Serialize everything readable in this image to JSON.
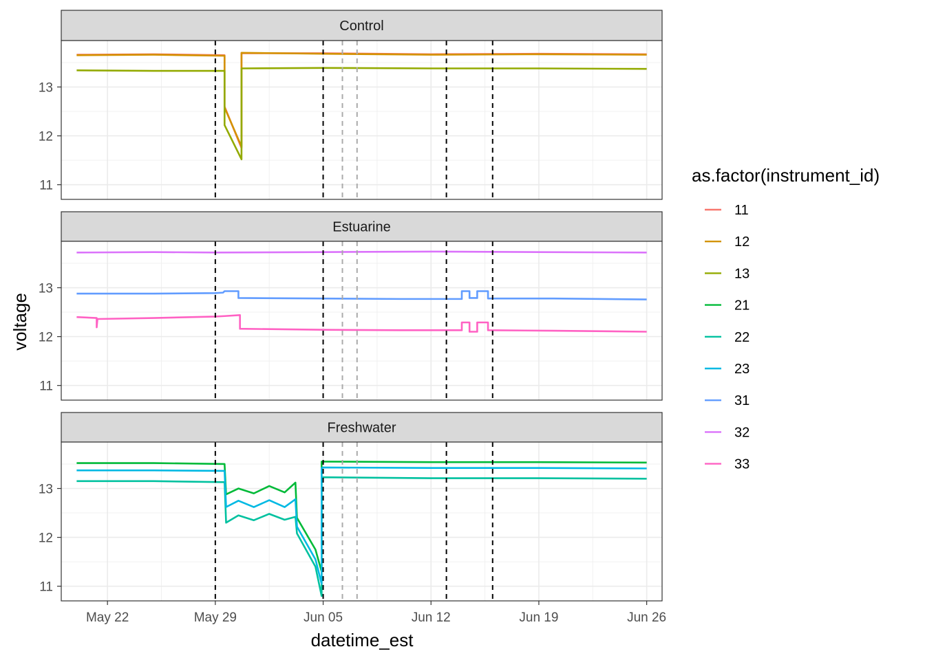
{
  "chart_data": {
    "type": "line",
    "xlabel": "datetime_est",
    "ylabel": "voltage",
    "legend_title": "as.factor(instrument_id)",
    "legend_position": "right",
    "grid": true,
    "x_range": [
      "2024-05-19",
      "2024-06-27"
    ],
    "y_range": [
      10.7,
      13.95
    ],
    "x_ticks": [
      {
        "date": "2024-05-22",
        "label": "May 22"
      },
      {
        "date": "2024-05-29",
        "label": "May 29"
      },
      {
        "date": "2024-06-05",
        "label": "Jun 05"
      },
      {
        "date": "2024-06-12",
        "label": "Jun 12"
      },
      {
        "date": "2024-06-19",
        "label": "Jun 19"
      },
      {
        "date": "2024-06-26",
        "label": "Jun 26"
      }
    ],
    "y_ticks": [
      11,
      12,
      13
    ],
    "event_lines": [
      {
        "date": "2024-05-29",
        "color": "#000000"
      },
      {
        "date": "2024-06-05",
        "color": "#000000"
      },
      {
        "date": "2024-06-06.25",
        "color": "#aaaaaa"
      },
      {
        "date": "2024-06-07.2",
        "color": "#aaaaaa"
      },
      {
        "date": "2024-06-13",
        "color": "#000000"
      },
      {
        "date": "2024-06-16",
        "color": "#000000"
      }
    ],
    "legend": [
      {
        "id": "11",
        "color": "#F8766D"
      },
      {
        "id": "12",
        "color": "#D39200"
      },
      {
        "id": "13",
        "color": "#93AA00"
      },
      {
        "id": "21",
        "color": "#00BA38"
      },
      {
        "id": "22",
        "color": "#00C19F"
      },
      {
        "id": "23",
        "color": "#00B9E3"
      },
      {
        "id": "31",
        "color": "#619CFF"
      },
      {
        "id": "32",
        "color": "#DB72FB"
      },
      {
        "id": "33",
        "color": "#FF61C3"
      }
    ],
    "panels": [
      {
        "title": "Control",
        "series": [
          {
            "id": "11",
            "color": "#F8766D",
            "points": [
              [
                "2024-05-20",
                13.66
              ],
              [
                "2024-05-25",
                13.67
              ],
              [
                "2024-05-29.6",
                13.65
              ],
              [
                "2024-05-29.6",
                12.6
              ],
              [
                "2024-05-30.7",
                11.75
              ],
              [
                "2024-05-30.7",
                13.69
              ],
              [
                "2024-06-05",
                13.69
              ],
              [
                "2024-06-12",
                13.67
              ],
              [
                "2024-06-19",
                13.68
              ],
              [
                "2024-06-26",
                13.67
              ]
            ]
          },
          {
            "id": "12",
            "color": "#D39200",
            "points": [
              [
                "2024-05-20",
                13.65
              ],
              [
                "2024-05-25",
                13.66
              ],
              [
                "2024-05-29.6",
                13.64
              ],
              [
                "2024-05-29.6",
                12.58
              ],
              [
                "2024-05-30.7",
                11.78
              ],
              [
                "2024-05-30.7",
                13.7
              ],
              [
                "2024-06-05",
                13.68
              ],
              [
                "2024-06-12",
                13.66
              ],
              [
                "2024-06-19",
                13.67
              ],
              [
                "2024-06-26",
                13.66
              ]
            ]
          },
          {
            "id": "13",
            "color": "#93AA00",
            "points": [
              [
                "2024-05-20",
                13.34
              ],
              [
                "2024-05-25",
                13.33
              ],
              [
                "2024-05-29.6",
                13.33
              ],
              [
                "2024-05-29.6",
                12.22
              ],
              [
                "2024-05-30.7",
                11.52
              ],
              [
                "2024-05-30.7",
                13.38
              ],
              [
                "2024-06-05",
                13.39
              ],
              [
                "2024-06-12",
                13.38
              ],
              [
                "2024-06-19",
                13.38
              ],
              [
                "2024-06-26",
                13.37
              ]
            ]
          }
        ]
      },
      {
        "title": "Estuarine",
        "series": [
          {
            "id": "31",
            "color": "#619CFF",
            "points": [
              [
                "2024-05-20",
                12.88
              ],
              [
                "2024-05-25",
                12.88
              ],
              [
                "2024-05-29",
                12.89
              ],
              [
                "2024-05-29.5",
                12.9
              ],
              [
                "2024-05-29.6",
                12.93
              ],
              [
                "2024-05-30.5",
                12.93
              ],
              [
                "2024-05-30.5",
                12.79
              ],
              [
                "2024-06-05",
                12.78
              ],
              [
                "2024-06-10",
                12.77
              ],
              [
                "2024-06-14",
                12.77
              ],
              [
                "2024-06-14",
                12.93
              ],
              [
                "2024-06-14.5",
                12.93
              ],
              [
                "2024-06-14.5",
                12.79
              ],
              [
                "2024-06-15",
                12.79
              ],
              [
                "2024-06-15",
                12.93
              ],
              [
                "2024-06-15.7",
                12.93
              ],
              [
                "2024-06-15.7",
                12.78
              ],
              [
                "2024-06-20",
                12.78
              ],
              [
                "2024-06-26",
                12.76
              ]
            ]
          },
          {
            "id": "32",
            "color": "#DB72FB",
            "points": [
              [
                "2024-05-20",
                13.72
              ],
              [
                "2024-05-25",
                13.73
              ],
              [
                "2024-05-29",
                13.72
              ],
              [
                "2024-06-05",
                13.73
              ],
              [
                "2024-06-12",
                13.74
              ],
              [
                "2024-06-19",
                13.73
              ],
              [
                "2024-06-26",
                13.72
              ]
            ]
          },
          {
            "id": "33",
            "color": "#FF61C3",
            "points": [
              [
                "2024-05-20",
                12.4
              ],
              [
                "2024-05-21.3",
                12.38
              ],
              [
                "2024-05-21.3",
                12.19
              ],
              [
                "2024-05-21.35",
                12.36
              ],
              [
                "2024-05-25",
                12.38
              ],
              [
                "2024-05-29",
                12.41
              ],
              [
                "2024-05-29.6",
                12.42
              ],
              [
                "2024-05-30.6",
                12.44
              ],
              [
                "2024-05-30.6",
                12.16
              ],
              [
                "2024-06-05",
                12.14
              ],
              [
                "2024-06-10",
                12.13
              ],
              [
                "2024-06-14",
                12.13
              ],
              [
                "2024-06-14",
                12.29
              ],
              [
                "2024-06-14.5",
                12.29
              ],
              [
                "2024-06-14.5",
                12.1
              ],
              [
                "2024-06-15",
                12.1
              ],
              [
                "2024-06-15",
                12.29
              ],
              [
                "2024-06-15.7",
                12.29
              ],
              [
                "2024-06-15.7",
                12.13
              ],
              [
                "2024-06-20",
                12.12
              ],
              [
                "2024-06-26",
                12.1
              ]
            ]
          }
        ]
      },
      {
        "title": "Freshwater",
        "series": [
          {
            "id": "21",
            "color": "#00BA38",
            "points": [
              [
                "2024-05-20",
                13.52
              ],
              [
                "2024-05-25",
                13.52
              ],
              [
                "2024-05-29.6",
                13.5
              ],
              [
                "2024-05-29.7",
                12.88
              ],
              [
                "2024-05-30.5",
                13.0
              ],
              [
                "2024-05-31.5",
                12.9
              ],
              [
                "2024-06-01.5",
                13.05
              ],
              [
                "2024-06-02.5",
                12.92
              ],
              [
                "2024-06-03.2",
                13.12
              ],
              [
                "2024-06-03.3",
                12.4
              ],
              [
                "2024-06-04.5",
                11.75
              ],
              [
                "2024-06-04.9",
                11.3
              ],
              [
                "2024-06-04.9",
                13.55
              ],
              [
                "2024-06-05",
                13.55
              ],
              [
                "2024-06-12",
                13.54
              ],
              [
                "2024-06-19",
                13.54
              ],
              [
                "2024-06-26",
                13.53
              ]
            ]
          },
          {
            "id": "22",
            "color": "#00C19F",
            "points": [
              [
                "2024-05-20",
                13.15
              ],
              [
                "2024-05-25",
                13.15
              ],
              [
                "2024-05-29.6",
                13.13
              ],
              [
                "2024-05-29.7",
                12.3
              ],
              [
                "2024-05-30.5",
                12.45
              ],
              [
                "2024-05-31.5",
                12.35
              ],
              [
                "2024-06-01.5",
                12.48
              ],
              [
                "2024-06-02.5",
                12.36
              ],
              [
                "2024-06-03.2",
                12.42
              ],
              [
                "2024-06-03.3",
                12.08
              ],
              [
                "2024-06-04.5",
                11.4
              ],
              [
                "2024-06-04.9",
                10.8
              ],
              [
                "2024-06-04.9",
                13.22
              ],
              [
                "2024-06-05",
                13.23
              ],
              [
                "2024-06-12",
                13.21
              ],
              [
                "2024-06-19",
                13.21
              ],
              [
                "2024-06-26",
                13.2
              ]
            ]
          },
          {
            "id": "23",
            "color": "#00B9E3",
            "points": [
              [
                "2024-05-20",
                13.37
              ],
              [
                "2024-05-25",
                13.37
              ],
              [
                "2024-05-29.6",
                13.36
              ],
              [
                "2024-05-29.7",
                12.62
              ],
              [
                "2024-05-30.5",
                12.75
              ],
              [
                "2024-05-31.5",
                12.62
              ],
              [
                "2024-06-01.5",
                12.76
              ],
              [
                "2024-06-02.5",
                12.62
              ],
              [
                "2024-06-03.2",
                12.78
              ],
              [
                "2024-06-03.3",
                12.22
              ],
              [
                "2024-06-04.5",
                11.55
              ],
              [
                "2024-06-04.9",
                11.05
              ],
              [
                "2024-06-04.9",
                13.42
              ],
              [
                "2024-06-05",
                13.43
              ],
              [
                "2024-06-12",
                13.42
              ],
              [
                "2024-06-19",
                13.42
              ],
              [
                "2024-06-26",
                13.41
              ]
            ]
          }
        ]
      }
    ]
  }
}
